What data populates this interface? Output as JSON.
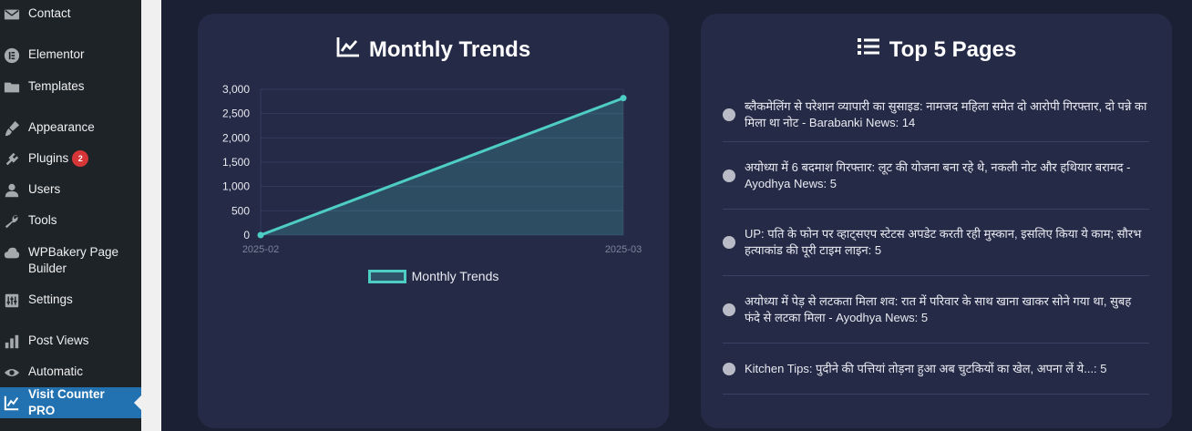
{
  "sidebar": {
    "items": [
      {
        "label": "Contact",
        "icon": "envelope-icon"
      },
      {
        "label": "Elementor",
        "icon": "elementor-icon"
      },
      {
        "label": "Templates",
        "icon": "folder-icon"
      },
      {
        "label": "Appearance",
        "icon": "brush-icon"
      },
      {
        "label": "Plugins",
        "icon": "plugin-icon",
        "badge": "2"
      },
      {
        "label": "Users",
        "icon": "user-icon"
      },
      {
        "label": "Tools",
        "icon": "wrench-icon"
      },
      {
        "label": "WPBakery Page Builder",
        "icon": "cloud-icon"
      },
      {
        "label": "Settings",
        "icon": "sliders-icon"
      },
      {
        "label": "Post Views",
        "icon": "bar-chart-icon"
      },
      {
        "label": "Automatic",
        "icon": "eye-icon"
      },
      {
        "label": "Visit Counter PRO",
        "icon": "chart-line-icon",
        "active": true
      }
    ]
  },
  "trends": {
    "title": "Monthly Trends",
    "legend": "Monthly Trends"
  },
  "chart_data": {
    "type": "line",
    "x": [
      "2025-02",
      "2025-03"
    ],
    "series": [
      {
        "name": "Monthly Trends",
        "values": [
          0,
          2820
        ]
      }
    ],
    "ylim": [
      0,
      3000
    ],
    "yticks": [
      "0",
      "500",
      "1,000",
      "1,500",
      "2,000",
      "2,500",
      "3,000"
    ],
    "ytick_values": [
      0,
      500,
      1000,
      1500,
      2000,
      2500,
      3000
    ],
    "grid": true,
    "legend_position": "bottom",
    "color": "#4ecdc4",
    "fill": true
  },
  "top_pages": {
    "title": "Top 5 Pages",
    "items": [
      "ब्लैकमेलिंग से परेशान व्यापारी का सुसाइड: नामजद महिला समेत दो आरोपी गिरफ्तार, दो पन्ने का मिला था नोट - Barabanki News: 14",
      "अयोध्या में 6 बदमाश गिरफ्तार: लूट की योजना बना रहे थे, नकली नोट और हथियार बरामद - Ayodhya News: 5",
      "UP: पति के फोन पर व्हाट्सएप स्टेटस अपडेट करती रही मुस्कान, इसलिए किया ये काम; सौरभ हत्याकांड की पूरी टाइम लाइन: 5",
      "अयोध्या में पेड़ से लटकता मिला शव: रात में परिवार के साथ खाना खाकर सोने गया था, सुबह फंदे से लटका मिला - Ayodhya News: 5",
      "Kitchen Tips: पुदीने की पत्तियां तोड़ना हुआ अब चुटकियों का खेल, अपना लें ये...: 5"
    ]
  }
}
